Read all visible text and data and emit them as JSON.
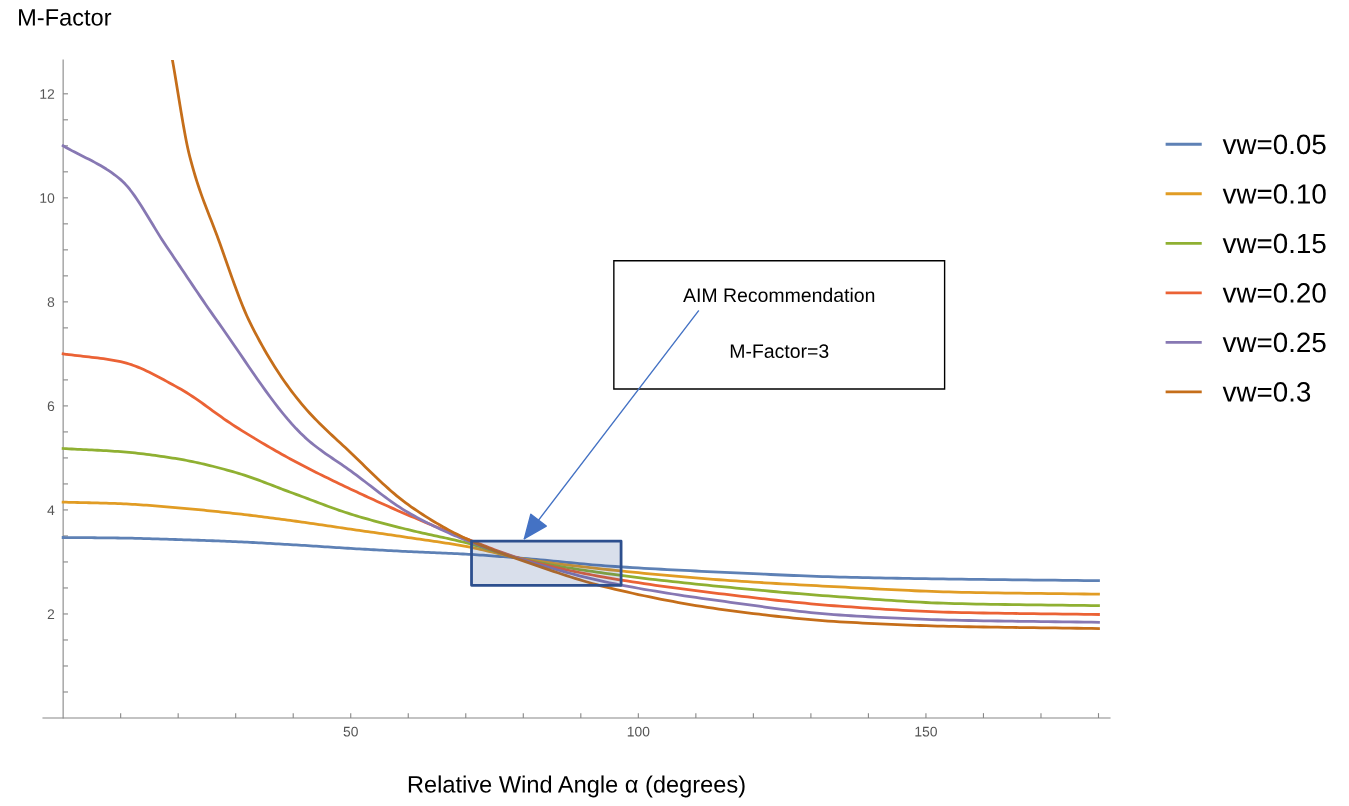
{
  "chart_data": {
    "type": "line",
    "xlabel": "Relative Wind Angle α (degrees)",
    "ylabel": "M-Factor",
    "x": [
      0,
      10,
      20,
      30,
      40,
      50,
      60,
      70,
      80,
      95,
      115,
      135,
      155,
      180
    ],
    "series": [
      {
        "name": "vw=0.05",
        "color": "#5e81b5",
        "values": [
          3.47,
          3.46,
          3.43,
          3.39,
          3.33,
          3.26,
          3.2,
          3.15,
          3.07,
          2.92,
          2.8,
          2.71,
          2.67,
          2.64
        ]
      },
      {
        "name": "vw=0.10",
        "color": "#e19c24",
        "values": [
          4.15,
          4.12,
          4.04,
          3.93,
          3.79,
          3.63,
          3.47,
          3.3,
          3.06,
          2.85,
          2.65,
          2.52,
          2.42,
          2.38
        ]
      },
      {
        "name": "vw=0.15",
        "color": "#8fb032",
        "values": [
          5.18,
          5.12,
          4.98,
          4.72,
          4.32,
          3.92,
          3.62,
          3.37,
          3.05,
          2.77,
          2.52,
          2.33,
          2.2,
          2.16
        ]
      },
      {
        "name": "vw=0.20",
        "color": "#eb6235",
        "values": [
          7.0,
          6.85,
          6.35,
          5.6,
          4.95,
          4.4,
          3.9,
          3.45,
          3.05,
          2.69,
          2.38,
          2.15,
          2.03,
          1.99
        ]
      },
      {
        "name": "vw=0.25",
        "color": "#8778b3",
        "x": [
          0,
          10,
          18,
          27,
          42,
          50,
          60,
          70,
          80,
          95,
          115,
          135,
          155,
          180
        ],
        "values": [
          11.0,
          10.35,
          9.06,
          7.6,
          5.4,
          4.75,
          3.95,
          3.42,
          3.04,
          2.6,
          2.24,
          1.98,
          1.88,
          1.84
        ]
      },
      {
        "name": "vw=0.3",
        "color": "#c56e1a",
        "x": [
          19,
          22,
          27,
          32.5,
          41,
          50,
          60,
          70,
          80,
          95,
          115,
          135,
          155,
          180
        ],
        "values": [
          12.65,
          10.8,
          9.2,
          7.6,
          6.1,
          5.1,
          4.1,
          3.45,
          3.02,
          2.5,
          2.08,
          1.85,
          1.76,
          1.72
        ]
      },
      {
        "type": "line",
        "color": "#2d4f8e",
        "x": [
          71,
          97
        ],
        "values": [
          null,
          null
        ],
        "lower": [
          2.55,
          2.55
        ],
        "upper": [
          3.4,
          3.4
        ]
      }
    ],
    "annotations": [
      {
        "text": "AIM Recommendation",
        "x": 80,
        "y": 3.42
      },
      "M-Factor=3"
    ],
    "xlim": [
      -3.5,
      182
    ],
    "ylim": [
      0,
      12.65
    ],
    "xticks": [
      {
        "value": 10,
        "label": null
      },
      {
        "value": 20,
        "label": null
      },
      {
        "value": 30,
        "label": null
      },
      {
        "value": 40,
        "label": null
      },
      50,
      {
        "value": 60,
        "label": null
      },
      {
        "value": 70,
        "label": null
      },
      {
        "value": 80,
        "label": null
      },
      {
        "value": 90,
        "label": null
      },
      100,
      {
        "value": 110,
        "label": null
      },
      {
        "value": 120,
        "label": null
      },
      {
        "value": 130,
        "label": null
      },
      {
        "value": 140,
        "label": null
      },
      150,
      {
        "value": 160,
        "label": null
      },
      {
        "value": 170,
        "label": null
      },
      {
        "value": 180,
        "label": null
      }
    ],
    "yticks": [
      {
        "value": 0.5,
        "label": null
      },
      {
        "value": 1,
        "label": null
      },
      {
        "value": 1.5,
        "label": null
      },
      2,
      {
        "value": 2.5,
        "label": null
      },
      {
        "value": 3,
        "label": null
      },
      {
        "value": 3.5,
        "label": null
      },
      4,
      {
        "value": 4.5,
        "label": null
      },
      {
        "value": 5,
        "label": null
      },
      {
        "value": 5.5,
        "label": null
      },
      6,
      {
        "value": 6.5,
        "label": null
      },
      {
        "value": 7,
        "label": null
      },
      {
        "value": 7.5,
        "label": null
      },
      8,
      {
        "value": 8.5,
        "label": null
      },
      {
        "value": 9,
        "label": null
      },
      {
        "value": 9.5,
        "label": null
      },
      10,
      {
        "value": 10.5,
        "label": null
      },
      {
        "value": 11,
        "label": null
      },
      {
        "value": 11.5,
        "label": null
      },
      12
    ],
    "grid": false,
    "legend": "right",
    "marker": "none",
    "line_style": "solid"
  }
}
